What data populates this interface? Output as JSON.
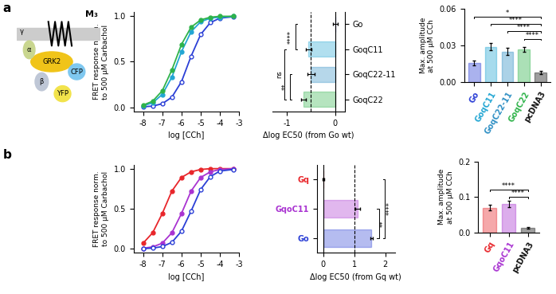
{
  "panel_labels": [
    "a",
    "b"
  ],
  "diagram": {
    "labels": [
      "M₃",
      "GRK2",
      "α",
      "β",
      "γ",
      "CFP",
      "YFP"
    ]
  },
  "chart_data": [
    {
      "type": "line",
      "xlabel": "log [CCh]",
      "ylabel": "FRET response norm.\nto 500 µM Carbachol",
      "x": [
        -8,
        -7.5,
        -7,
        -6.5,
        -6,
        -5.5,
        -5,
        -4.5,
        -4,
        -3.3
      ],
      "series": [
        {
          "name": "Go",
          "color": "#2b3fd6",
          "marker": "open_circle",
          "values": [
            0.004,
            0.012,
            0.038,
            0.11,
            0.28,
            0.56,
            0.8,
            0.93,
            0.98,
            0.995
          ]
        },
        {
          "name": "GoqC11",
          "color": "#22a6d3",
          "marker": "circle",
          "values": [
            0.016,
            0.048,
            0.14,
            0.33,
            0.61,
            0.83,
            0.94,
            0.98,
            0.99,
            1.0
          ]
        },
        {
          "name": "GoqC22",
          "color": "#2fb34a",
          "marker": "circle",
          "values": [
            0.022,
            0.066,
            0.18,
            0.41,
            0.69,
            0.88,
            0.96,
            0.99,
            1.0,
            1.0
          ]
        }
      ],
      "xlim": [
        -8.5,
        -3
      ],
      "ylim": [
        -0.05,
        1.05
      ],
      "xticks": [
        -8,
        -7,
        -6,
        -5,
        -4,
        -3
      ],
      "yticks": [
        {
          "value": 0,
          "label": "0.0"
        },
        {
          "value": 0.5,
          "label": "0.5"
        },
        {
          "value": 1,
          "label": "1.0"
        }
      ]
    },
    {
      "type": "bar",
      "orientation": "horizontal",
      "xlabel": "Δlog EC50 (from Go wt)",
      "categories": [
        "Go",
        "GoqC11",
        "GoqC22-11",
        "GoqC22"
      ],
      "values": [
        0,
        -0.55,
        -0.5,
        -0.65
      ],
      "errors": [
        0.05,
        0.06,
        0.07,
        0.05
      ],
      "colors": [
        "#2b3fd6",
        "#22a6d3",
        "#2e8fc4",
        "#2fb34a"
      ],
      "xlim": [
        -1.3,
        0.2
      ],
      "xticks": [
        -1,
        0
      ],
      "reference_line": -0.5,
      "significance": [
        {
          "from": 0,
          "to": 1,
          "label": "****"
        },
        {
          "from": 2,
          "to": 3,
          "label": "**"
        },
        {
          "from": 1,
          "to": 3,
          "label": "ns"
        }
      ]
    },
    {
      "type": "bar",
      "ylabel": "Max. amplitude\nat 500 µM CCh",
      "categories": [
        "Go",
        "GoqC11",
        "GoqC22-11",
        "GoqC22",
        "pcDNA3"
      ],
      "values": [
        0.016,
        0.029,
        0.025,
        0.027,
        0.008
      ],
      "errors": [
        0.002,
        0.003,
        0.003,
        0.002,
        0.001
      ],
      "colors": [
        "#2b3fd6",
        "#22a6d3",
        "#2e8fc4",
        "#2fb34a",
        "#111111"
      ],
      "ylim": [
        0,
        0.06
      ],
      "yticks": [
        {
          "value": 0,
          "label": "0.00"
        },
        {
          "value": 0.03,
          "label": "0.03"
        },
        {
          "value": 0.06,
          "label": "0.06"
        }
      ],
      "significance": [
        {
          "from": 3,
          "to": 4,
          "label": "****"
        },
        {
          "from": 2,
          "to": 4,
          "label": "****"
        },
        {
          "from": 1,
          "to": 4,
          "label": "****"
        },
        {
          "from": 0,
          "to": 4,
          "label": "*"
        }
      ]
    },
    {
      "type": "line",
      "xlabel": "log [CCh]",
      "ylabel": "FRET response norm.\nto 500 µM Carbachol",
      "x": [
        -8,
        -7.5,
        -7,
        -6.5,
        -6,
        -5.5,
        -5,
        -4.5,
        -4,
        -3.3
      ],
      "series": [
        {
          "name": "Gq",
          "color": "#e8262b",
          "marker": "circle",
          "values": [
            0.07,
            0.2,
            0.44,
            0.72,
            0.89,
            0.96,
            0.99,
            1.0,
            1.0,
            1.0
          ]
        },
        {
          "name": "GqoC11",
          "color": "#a933d1",
          "marker": "circle",
          "values": [
            0.008,
            0.024,
            0.07,
            0.2,
            0.44,
            0.72,
            0.89,
            0.96,
            0.99,
            1.0
          ]
        },
        {
          "name": "Go",
          "color": "#2b3fd6",
          "marker": "open_circle",
          "values": [
            0.003,
            0.009,
            0.028,
            0.08,
            0.22,
            0.47,
            0.74,
            0.9,
            0.97,
            0.99
          ]
        }
      ],
      "xlim": [
        -8.5,
        -3
      ],
      "ylim": [
        -0.05,
        1.05
      ],
      "xticks": [
        -8,
        -7,
        -6,
        -5,
        -4,
        -3
      ],
      "yticks": [
        {
          "value": 0,
          "label": "0.0"
        },
        {
          "value": 0.5,
          "label": "0.5"
        },
        {
          "value": 1,
          "label": "1.0"
        }
      ]
    },
    {
      "type": "bar",
      "orientation": "horizontal",
      "xlabel": "Δlog EC50 (from Gq wt)",
      "categories": [
        "Gq",
        "GqoC11",
        "Go"
      ],
      "values": [
        0,
        1.1,
        1.55
      ],
      "errors": [
        0.03,
        0.08,
        0.04
      ],
      "colors": [
        "#e8262b",
        "#a933d1",
        "#2b3fd6"
      ],
      "xlim": [
        -0.2,
        2.3
      ],
      "xticks": [
        0,
        1,
        2
      ],
      "reference_line": 1,
      "significance": [
        {
          "from": 1,
          "to": 2,
          "label": "**"
        },
        {
          "from": 0,
          "to": 2,
          "label": "****"
        }
      ]
    },
    {
      "type": "bar",
      "ylabel": "Max. amplitude\nat 500 µM CCh",
      "categories": [
        "Gq",
        "GqoC11",
        "pcDNA3"
      ],
      "values": [
        0.07,
        0.08,
        0.012
      ],
      "errors": [
        0.007,
        0.009,
        0.002
      ],
      "colors": [
        "#e8262b",
        "#a933d1",
        "#111111"
      ],
      "ylim": [
        0,
        0.2
      ],
      "yticks": [
        {
          "value": 0,
          "label": "0.0"
        },
        {
          "value": 0.1,
          "label": "0.1"
        },
        {
          "value": 0.2,
          "label": "0.2"
        }
      ],
      "significance": [
        {
          "from": 1,
          "to": 2,
          "label": "****"
        },
        {
          "from": 0,
          "to": 2,
          "label": "****"
        }
      ]
    }
  ]
}
